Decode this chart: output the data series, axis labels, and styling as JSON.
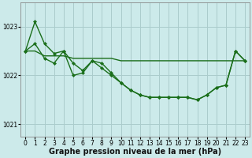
{
  "bg_color": "#cceaea",
  "grid_color": "#aacccc",
  "line_color": "#1a6e1a",
  "title": "Graphe pression niveau de la mer (hPa)",
  "ylabel_ticks": [
    1021,
    1022,
    1023
  ],
  "xlim": [
    -0.5,
    23.5
  ],
  "ylim": [
    1020.75,
    1023.5
  ],
  "linewidth": 1.0,
  "marker": "D",
  "marker_size": 2.2,
  "tick_fontsize": 5.5,
  "title_fontsize": 7.0,
  "series": {
    "flat": [
      1022.5,
      1022.5,
      1022.4,
      1022.4,
      1022.4,
      1022.35,
      1022.35,
      1022.35,
      1022.35,
      1022.35,
      1022.3,
      1022.3,
      1022.3,
      1022.3,
      1022.3,
      1022.3,
      1022.3,
      1022.3,
      1022.3,
      1022.3,
      1022.3,
      1022.3,
      1022.3,
      1022.3
    ],
    "peak": [
      1022.5,
      1023.1,
      1022.65,
      1022.45,
      1022.5,
      1022.25,
      1022.1,
      1022.3,
      1022.25,
      1022.05,
      1021.85,
      1021.7,
      1021.6,
      1021.55,
      1021.55,
      1021.55,
      1021.55,
      1021.55,
      1021.5,
      1021.6,
      1021.75,
      1021.8,
      1022.5,
      1022.3
    ],
    "zigzag": [
      1022.5,
      1022.65,
      1022.35,
      1022.25,
      1022.5,
      1022.0,
      1022.05,
      1022.3,
      1022.15,
      1022.0,
      1021.85,
      1021.7,
      1021.6,
      1021.55,
      1021.55,
      1021.55,
      1021.55,
      1021.55,
      1021.5,
      1021.6,
      1021.75,
      1021.8,
      1022.5,
      1022.3
    ]
  }
}
